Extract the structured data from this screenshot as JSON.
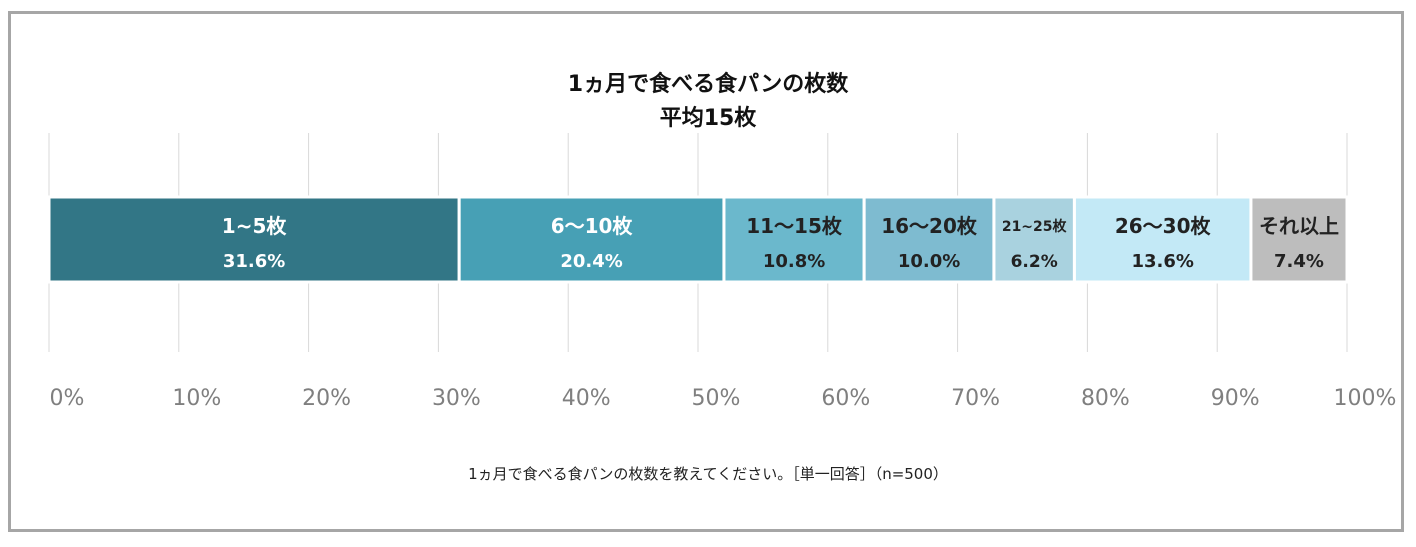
{
  "chart_data": {
    "type": "bar",
    "orientation": "horizontal-stacked-100",
    "title": "1ヵ月で食べる食パンの枚数",
    "subtitle": "平均15枚",
    "note": "1ヵ月で食べる食パンの枚数を教えてください。［単一回答］（n=500）",
    "xlim": [
      0,
      100
    ],
    "x_ticks": [
      "0%",
      "10%",
      "20%",
      "30%",
      "40%",
      "50%",
      "60%",
      "70%",
      "80%",
      "90%",
      "100%"
    ],
    "grid": true,
    "segments": [
      {
        "name": "1~5枚",
        "value": 31.6,
        "label": "31.6%",
        "color": "#327686",
        "text_color": "#ffffff"
      },
      {
        "name": "6～10枚",
        "value": 20.4,
        "label": "20.4%",
        "color": "#47a0b5",
        "text_color": "#ffffff"
      },
      {
        "name": "11～15枚",
        "value": 10.8,
        "label": "10.8%",
        "color": "#6bb8cc",
        "text_color": "#222222"
      },
      {
        "name": "16～20枚",
        "value": 10.0,
        "label": "10.0%",
        "color": "#7ebbd0",
        "text_color": "#222222"
      },
      {
        "name": "21~25枚",
        "value": 6.2,
        "label": "6.2%",
        "color": "#a9d2df",
        "text_color": "#222222"
      },
      {
        "name": "26～30枚",
        "value": 13.6,
        "label": "13.6%",
        "color": "#c3e9f6",
        "text_color": "#222222"
      },
      {
        "name": "それ以上",
        "value": 7.4,
        "label": "7.4%",
        "color": "#bdbdbd",
        "text_color": "#222222"
      }
    ]
  }
}
